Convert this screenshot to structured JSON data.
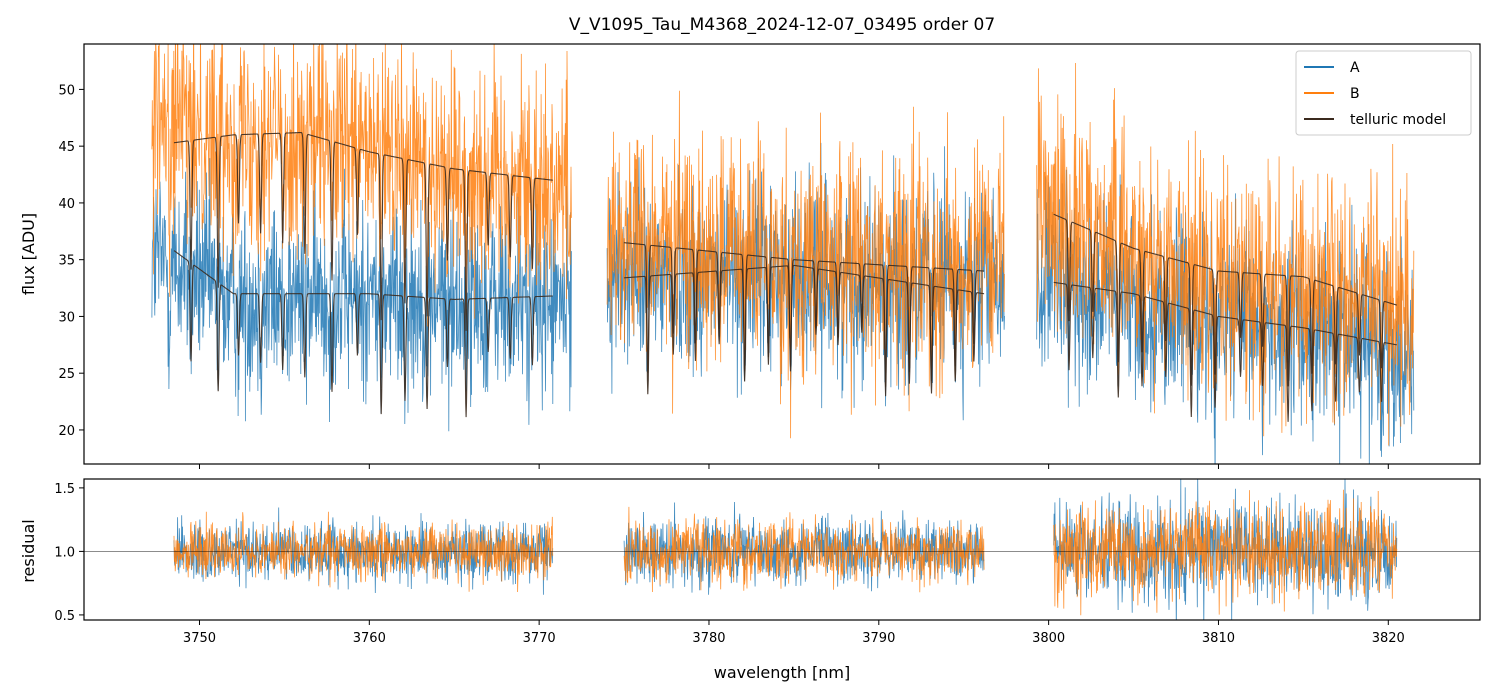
{
  "title": "V_V1095_Tau_M4368_2024-12-07_03495  order 07",
  "colors": {
    "A": "#1f77b4",
    "B": "#ff7f0e",
    "telluric": "#3b2a1e",
    "axes": "#000000"
  },
  "chart_data": [
    {
      "type": "line",
      "panel": "main",
      "ylabel": "flux [ADU]",
      "xlim": [
        3743.2,
        3825.4
      ],
      "ylim": [
        17,
        54
      ],
      "xticks": [
        3750,
        3760,
        3770,
        3780,
        3790,
        3800,
        3810,
        3820
      ],
      "yticks": [
        20,
        25,
        30,
        35,
        40,
        45,
        50
      ],
      "legend": {
        "position": "top-right",
        "entries": [
          "A",
          "B",
          "telluric model"
        ]
      },
      "segments": [
        [
          3747.2,
          3771.9
        ],
        [
          3774.0,
          3797.4
        ],
        [
          3799.3,
          3821.5
        ]
      ],
      "series": [
        {
          "name": "A",
          "color": "#1f77b4",
          "style": "noisy",
          "continuum": [
            [
              3747.2,
              35.5
            ],
            [
              3752,
              31.5
            ],
            [
              3760,
              31.8
            ],
            [
              3771.9,
              31.0
            ],
            [
              3774.0,
              33.8
            ],
            [
              3785,
              33.8
            ],
            [
              3797.4,
              32.8
            ],
            [
              3799.3,
              33.0
            ],
            [
              3810,
              29.8
            ],
            [
              3821.5,
              27.5
            ]
          ],
          "noise_sigma": 4.2
        },
        {
          "name": "B",
          "color": "#ff7f0e",
          "style": "noisy",
          "continuum": [
            [
              3747.2,
              47.0
            ],
            [
              3752,
              46.5
            ],
            [
              3760,
              44.5
            ],
            [
              3771.9,
              41.5
            ],
            [
              3774.0,
              36.8
            ],
            [
              3785,
              35.3
            ],
            [
              3797.4,
              34.5
            ],
            [
              3799.3,
              39.5
            ],
            [
              3810,
              33.2
            ],
            [
              3821.5,
              31.0
            ]
          ],
          "noise_sigma": 5.0
        },
        {
          "name": "telluric model",
          "color": "#3b2a1e",
          "style": "model",
          "ranges": [
            [
              3748.5,
              3770.8
            ],
            [
              3775.0,
              3796.2
            ],
            [
              3800.3,
              3820.5
            ]
          ],
          "continua": [
            [
              [
                3748.5,
                45.3
              ],
              [
                3752,
                46.0
              ],
              [
                3756,
                46.2
              ],
              [
                3760,
                44.5
              ],
              [
                3765,
                43.0
              ],
              [
                3770.8,
                42.0
              ],
              [
                3775.0,
                36.5
              ],
              [
                3785,
                35.0
              ],
              [
                3796.2,
                34.0
              ],
              [
                3800.3,
                39.0
              ],
              [
                3805,
                36.0
              ],
              [
                3810,
                34.0
              ],
              [
                3815,
                33.5
              ],
              [
                3820.5,
                31.0
              ]
            ],
            [
              [
                3748.5,
                35.8
              ],
              [
                3752,
                32.0
              ],
              [
                3760,
                32.0
              ],
              [
                3765,
                31.5
              ],
              [
                3770.8,
                31.8
              ],
              [
                3775.0,
                33.4
              ],
              [
                3785,
                34.5
              ],
              [
                3796.2,
                32.0
              ],
              [
                3800.3,
                33.0
              ],
              [
                3805,
                32.0
              ],
              [
                3810,
                30.0
              ],
              [
                3815,
                29.0
              ],
              [
                3820.5,
                27.5
              ]
            ]
          ]
        }
      ]
    },
    {
      "type": "line",
      "panel": "residual",
      "xlabel": "wavelength [nm]",
      "ylabel": "residual",
      "xlim": [
        3743.2,
        3825.4
      ],
      "ylim": [
        0.46,
        1.57
      ],
      "xticks": [
        3750,
        3760,
        3770,
        3780,
        3790,
        3800,
        3810,
        3820
      ],
      "yticks": [
        0.5,
        1.0,
        1.5
      ],
      "reference_line": 1.0,
      "segments": [
        [
          3748.5,
          3770.8
        ],
        [
          3775.0,
          3796.2
        ],
        [
          3800.3,
          3820.5
        ]
      ],
      "series": [
        {
          "name": "A",
          "color": "#1f77b4",
          "center": 1.0,
          "noise_sigma": [
            0.12,
            0.13,
            0.2
          ]
        },
        {
          "name": "B",
          "color": "#ff7f0e",
          "center": 1.0,
          "noise_sigma": [
            0.11,
            0.12,
            0.18
          ]
        }
      ]
    }
  ]
}
